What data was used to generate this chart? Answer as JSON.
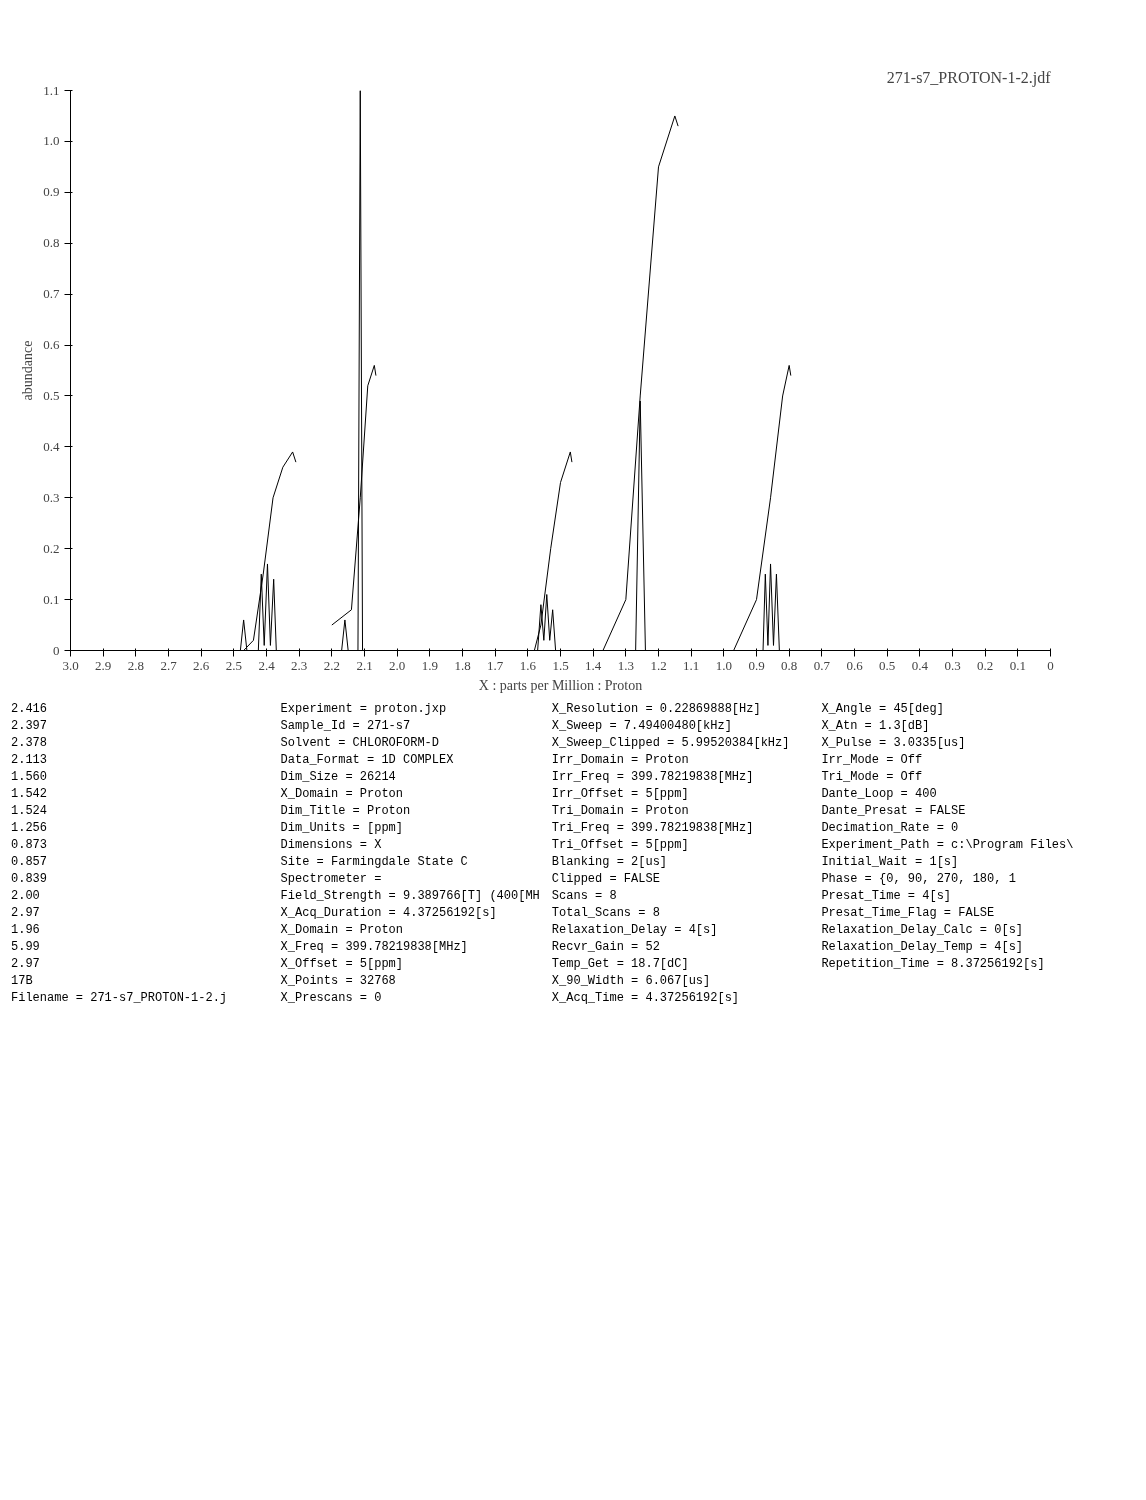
{
  "chart_data": {
    "type": "line",
    "title": "271-s7_PROTON-1-2.jdf",
    "xlabel": "X : parts per Million : Proton",
    "ylabel": "abundance",
    "xlim": [
      3.0,
      0
    ],
    "xticks": [
      {
        "value": 3,
        "label": "3.0"
      },
      2.9,
      2.8,
      2.7,
      2.6,
      2.5,
      2.4,
      2.3,
      2.2,
      2.1,
      {
        "value": 2,
        "label": "2.0"
      },
      1.9,
      1.8,
      1.7,
      1.6,
      1.5,
      1.4,
      1.3,
      1.2,
      1.1,
      {
        "value": 1,
        "label": "1.0"
      },
      0.9,
      0.8,
      0.7,
      0.6,
      0.5,
      0.4,
      0.3,
      0.2,
      0.1,
      0
    ],
    "ylim": [
      0,
      1.1
    ],
    "yticks": [
      0,
      0.1,
      0.2,
      0.3,
      0.4,
      0.5,
      0.6,
      0.7,
      0.8,
      0.9,
      {
        "value": 1,
        "label": "1.0"
      },
      1.1
    ],
    "grid": false,
    "marker": "none",
    "line_style": "solid",
    "series": [
      {
        "color": "#000000",
        "x": [
          3.0,
          2.48,
          2.47,
          2.46,
          2.425,
          2.416,
          2.407,
          2.397,
          2.388,
          2.378,
          2.37,
          2.17,
          2.16,
          2.15,
          2.12,
          2.113,
          2.106,
          1.57,
          1.56,
          1.551,
          1.542,
          1.533,
          1.524,
          1.515,
          1.27,
          1.256,
          1.24,
          0.88,
          0.873,
          0.865,
          0.857,
          0.848,
          0.839,
          0.83,
          0
        ],
        "values": [
          0,
          0,
          0.06,
          0,
          0,
          0.15,
          0.01,
          0.17,
          0.01,
          0.14,
          0,
          0,
          0.06,
          0,
          0,
          1.1,
          0,
          0,
          0.09,
          0.02,
          0.11,
          0.02,
          0.08,
          0,
          0,
          0.49,
          0,
          0,
          0.15,
          0.01,
          0.17,
          0.01,
          0.15,
          0,
          0
        ]
      },
      {
        "color": "#000000",
        "x": [
          2.47,
          2.44,
          2.41,
          2.38,
          2.35,
          2.32,
          2.31,
          2.3,
          2.2,
          2.14,
          2.113,
          2.09,
          2.07,
          2.065,
          2.0,
          1.58,
          1.56,
          1.53,
          1.5,
          1.47,
          1.465,
          1.4,
          1.37,
          1.3,
          1.256,
          1.2,
          1.15,
          1.14,
          1.0,
          0.97,
          0.9,
          0.857,
          0.82,
          0.8,
          0.795
        ],
        "values": [
          0,
          0.02,
          0.15,
          0.3,
          0.36,
          0.39,
          0.37,
          null,
          0.05,
          0.08,
          0.3,
          0.52,
          0.56,
          0.54,
          null,
          0,
          0.05,
          0.2,
          0.33,
          0.39,
          0.37,
          null,
          0,
          0.1,
          0.5,
          0.95,
          1.05,
          1.03,
          null,
          0,
          0.1,
          0.3,
          0.5,
          0.56,
          0.54
        ]
      }
    ],
    "annotations": [
      "2.416",
      "2.397",
      "2.378",
      "2.113",
      "1.560",
      "1.542",
      "1.524",
      "1.256",
      "0.873",
      "0.857",
      "0.839",
      "2.00",
      "2.97",
      "1.96",
      "5.99",
      "2.97",
      "17B",
      "Filename = 271-s7_PROTON-1-2.j",
      "Experiment = proton.jxp",
      "Sample_Id = 271-s7",
      "Solvent = CHLOROFORM-D",
      "Data_Format = 1D COMPLEX",
      "Dim_Size = 26214",
      "X_Domain = Proton",
      "Dim_Title = Proton",
      "Dim_Units = [ppm]",
      "Dimensions = X",
      "Site = Farmingdale State C",
      "Spectrometer =",
      "Field_Strength = 9.389766[T] (400[MH",
      "X_Acq_Duration = 4.37256192[s]",
      "X_Domain = Proton",
      "X_Freq = 399.78219838[MHz]",
      "X_Offset = 5[ppm]",
      "X_Points = 32768",
      "X_Prescans = 0",
      "X_Resolution = 0.22869888[Hz]",
      "X_Sweep = 7.49400480[kHz]",
      "X_Sweep_Clipped = 5.99520384[kHz]",
      "Irr_Domain = Proton",
      "Irr_Freq = 399.78219838[MHz]",
      "Irr_Offset = 5[ppm]",
      "Tri_Domain = Proton",
      "Tri_Freq = 399.78219838[MHz]",
      "Tri_Offset = 5[ppm]",
      "Blanking = 2[us]",
      "Clipped = FALSE",
      "Scans = 8",
      "Total_Scans = 8",
      "Relaxation_Delay = 4[s]",
      "Recvr_Gain = 52",
      "Temp_Get = 18.7[dC]",
      "X_90_Width = 6.067[us]",
      "X_Acq_Time = 4.37256192[s]",
      "X_Angle = 45[deg]",
      "X_Atn = 1.3[dB]",
      "X_Pulse = 3.0335[us]",
      "Irr_Mode = Off",
      "Tri_Mode = Off",
      "Dante_Loop = 400",
      "Dante_Presat = FALSE",
      "Decimation_Rate = 0",
      "Experiment_Path = c:\\Program Files\\",
      "Initial_Wait = 1[s]",
      "Phase = {0, 90, 270, 180, 1",
      "Presat_Time = 4[s]",
      "Presat_Time_Flag = FALSE",
      "Relaxation_Delay_Calc = 0[s]",
      "Relaxation_Delay_Temp = 4[s]",
      "Repetition_Time = 8.37256192[s]"
    ]
  }
}
